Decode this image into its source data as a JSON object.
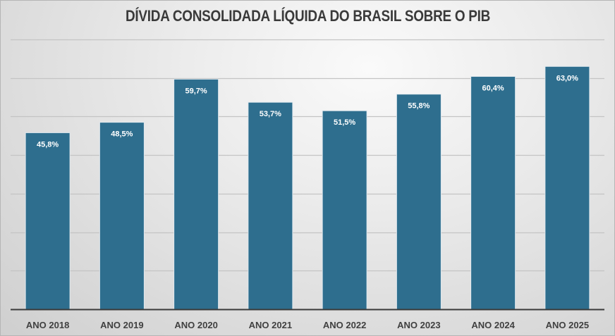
{
  "chart_data": {
    "type": "bar",
    "title": "DÍVIDA CONSOLIDADA LÍQUIDA DO BRASIL SOBRE O PIB",
    "categories": [
      "ANO 2018",
      "ANO 2019",
      "ANO 2020",
      "ANO 2021",
      "ANO 2022",
      "ANO 2023",
      "ANO 2024",
      "ANO 2025"
    ],
    "values": [
      45.8,
      48.5,
      59.7,
      53.7,
      51.5,
      55.8,
      60.4,
      63.0
    ],
    "data_labels": [
      "45,8%",
      "48,5%",
      "59,7%",
      "53,7%",
      "51,5%",
      "55,8%",
      "60,4%",
      "63,0%"
    ],
    "xlabel": "",
    "ylabel": "",
    "ylim": [
      0,
      70
    ],
    "gridlines": [
      10,
      20,
      30,
      40,
      50,
      60,
      70
    ],
    "grid": true,
    "y_tick_labels_visible": false,
    "legend": "none",
    "bar_color": "#2e6e8e"
  }
}
